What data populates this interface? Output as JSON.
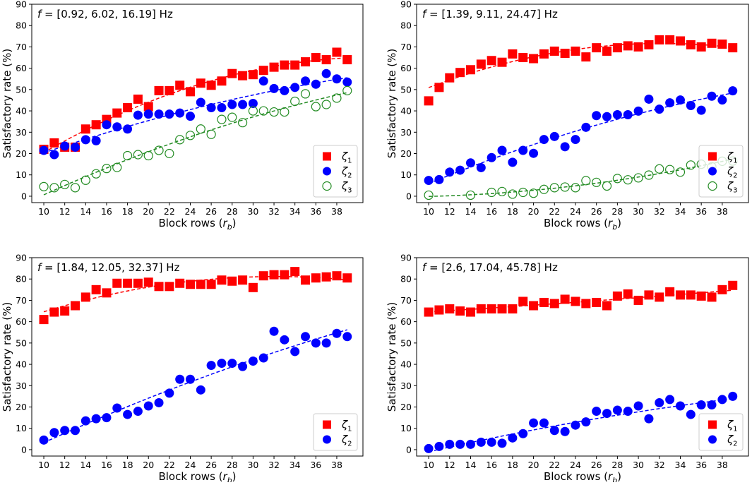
{
  "chart_data": [
    {
      "type": "scatter",
      "title": "f = [0.92, 6.02, 16.19] Hz",
      "xlabel": "Block rows (r_b)",
      "ylabel": "Satisfactory rate (%)",
      "xlim": [
        8.85,
        40.5
      ],
      "ylim": [
        -3,
        90
      ],
      "xticks": [
        10,
        12,
        14,
        16,
        18,
        20,
        22,
        24,
        26,
        28,
        30,
        32,
        34,
        36,
        38
      ],
      "yticks": [
        0,
        10,
        20,
        30,
        40,
        50,
        60,
        70,
        80,
        90
      ],
      "legend_position": "bottom-right",
      "x": [
        10,
        11,
        12,
        13,
        14,
        15,
        16,
        17,
        18,
        19,
        20,
        21,
        22,
        23,
        24,
        25,
        26,
        27,
        28,
        29,
        30,
        31,
        32,
        33,
        34,
        35,
        36,
        37,
        38,
        39
      ],
      "series": [
        {
          "name": "ζ1",
          "marker": "square",
          "color": "#ff0000",
          "fit": "dashed quadratic",
          "values": [
            22,
            25,
            23,
            23,
            31.5,
            33.5,
            36,
            39,
            41.5,
            45.5,
            42,
            49.5,
            49.5,
            52,
            49,
            53,
            52,
            54,
            57.5,
            56.5,
            57,
            59,
            60.5,
            61.5,
            61.5,
            63,
            65,
            64,
            67.5,
            64
          ]
        },
        {
          "name": "ζ2",
          "marker": "circle",
          "color": "#0000ff",
          "fit": "dashed quadratic",
          "values": [
            21.5,
            19.5,
            23.5,
            23,
            26.5,
            26,
            33.5,
            32.5,
            31.5,
            38,
            38.5,
            38.5,
            38.5,
            39,
            37.5,
            44,
            41.5,
            41.5,
            43,
            43,
            43.5,
            54,
            50.5,
            49.5,
            51,
            54,
            52.5,
            57.5,
            55,
            53.5
          ]
        },
        {
          "name": "ζ3",
          "marker": "open-circle",
          "color": "#228b22",
          "fit": "dashed quadratic",
          "values": [
            4.5,
            4,
            5.5,
            4,
            7.5,
            10.5,
            13,
            13.5,
            19,
            19.5,
            19,
            21.5,
            20,
            26.5,
            28.5,
            31.5,
            29,
            36,
            37,
            34.5,
            40,
            40,
            39.5,
            39.5,
            44.5,
            48,
            42,
            43,
            46,
            49.5
          ]
        }
      ]
    },
    {
      "type": "scatter",
      "title": "f = [1.39, 9.11, 24.47] Hz",
      "xlabel": "Block rows (r_b)",
      "ylabel": "Satisfactory rate (%)",
      "xlim": [
        8.85,
        40.5
      ],
      "ylim": [
        -3,
        90
      ],
      "xticks": [
        10,
        12,
        14,
        16,
        18,
        20,
        22,
        24,
        26,
        28,
        30,
        32,
        34,
        36,
        38
      ],
      "yticks": [
        0,
        10,
        20,
        30,
        40,
        50,
        60,
        70,
        80,
        90
      ],
      "legend_position": "bottom-right",
      "x": [
        10,
        11,
        12,
        13,
        14,
        15,
        16,
        17,
        18,
        19,
        20,
        21,
        22,
        23,
        24,
        25,
        26,
        27,
        28,
        29,
        30,
        31,
        32,
        33,
        34,
        35,
        36,
        37,
        38,
        39
      ],
      "series": [
        {
          "name": "ζ1",
          "marker": "square",
          "color": "#ff0000",
          "fit": "dashed quadratic",
          "values": [
            44.7,
            51,
            55.5,
            58,
            59.3,
            61.9,
            63.6,
            62.8,
            66.7,
            65,
            64.5,
            66.7,
            68,
            67,
            68,
            65.3,
            69.6,
            68,
            69.6,
            70.5,
            70,
            71,
            73.3,
            73.3,
            72.8,
            71,
            70,
            71.7,
            71.3,
            69.6
          ]
        },
        {
          "name": "ζ2",
          "marker": "circle",
          "color": "#0000ff",
          "fit": "dashed quadratic",
          "values": [
            7.4,
            7.8,
            11.3,
            12.2,
            15.6,
            13.4,
            18.1,
            21.5,
            15.9,
            21.5,
            20.1,
            26.6,
            28,
            23.2,
            26.6,
            32.3,
            37.8,
            37.3,
            38.2,
            38.2,
            39.9,
            45.5,
            40.8,
            43.8,
            45.1,
            42.5,
            40.3,
            46.9,
            45.1,
            49.4
          ]
        },
        {
          "name": "ζ3",
          "marker": "open-circle",
          "color": "#228b22",
          "fit": "dashed quadratic",
          "values": [
            0.5,
            null,
            null,
            null,
            0.5,
            null,
            1.8,
            2.2,
            1,
            1.8,
            1.4,
            3.2,
            4,
            4.3,
            4,
            7.3,
            6.5,
            4.8,
            8.3,
            7.7,
            8.6,
            9.9,
            12.8,
            12.5,
            11.3,
            14.6,
            15,
            13.8,
            16.4,
            16.5
          ]
        }
      ]
    },
    {
      "type": "scatter",
      "title": "f = [1.84, 12.05, 32.37] Hz",
      "xlabel": "Block rows (r_b)",
      "ylabel": "Satisfactory rate (%)",
      "xlim": [
        8.85,
        40.5
      ],
      "ylim": [
        -3,
        90
      ],
      "xticks": [
        10,
        12,
        14,
        16,
        18,
        20,
        22,
        24,
        26,
        28,
        30,
        32,
        34,
        36,
        38
      ],
      "yticks": [
        0,
        10,
        20,
        30,
        40,
        50,
        60,
        70,
        80,
        90
      ],
      "legend_position": "bottom-right",
      "x": [
        10,
        11,
        12,
        13,
        14,
        15,
        16,
        17,
        18,
        19,
        20,
        21,
        22,
        23,
        24,
        25,
        26,
        27,
        28,
        29,
        30,
        31,
        32,
        33,
        34,
        35,
        36,
        37,
        38,
        39
      ],
      "series": [
        {
          "name": "ζ1",
          "marker": "square",
          "color": "#ff0000",
          "fit": "dashed quadratic",
          "values": [
            61,
            64.5,
            65,
            67.5,
            71.5,
            75,
            73.5,
            78,
            78,
            78,
            78.5,
            76.5,
            76.5,
            78,
            77.5,
            77.5,
            77.5,
            79.5,
            79,
            79.5,
            76,
            81.5,
            82,
            82,
            83.5,
            79.5,
            80.5,
            81,
            81.5,
            80.5
          ]
        },
        {
          "name": "ζ2",
          "marker": "circle",
          "color": "#0000ff",
          "fit": "dashed quadratic",
          "values": [
            4.5,
            8,
            9,
            9,
            13.5,
            14.5,
            15,
            19.5,
            16.5,
            18,
            20.5,
            22,
            26.5,
            33,
            33,
            28,
            39.5,
            40.5,
            40.5,
            39,
            41.5,
            43,
            55.5,
            51.5,
            46,
            53,
            50,
            50,
            54.5,
            53
          ]
        }
      ]
    },
    {
      "type": "scatter",
      "title": "f = [2.6, 17.04, 45.78] Hz",
      "xlabel": "Block rows (r_b)",
      "ylabel": "Satisfactory rate (%)",
      "xlim": [
        8.85,
        40.5
      ],
      "ylim": [
        -3,
        90
      ],
      "xticks": [
        10,
        12,
        14,
        16,
        18,
        20,
        22,
        24,
        26,
        28,
        30,
        32,
        34,
        36,
        38
      ],
      "yticks": [
        0,
        10,
        20,
        30,
        40,
        50,
        60,
        70,
        80,
        90
      ],
      "legend_position": "bottom-right",
      "x": [
        10,
        11,
        12,
        13,
        14,
        15,
        16,
        17,
        18,
        19,
        20,
        21,
        22,
        23,
        24,
        25,
        26,
        27,
        28,
        29,
        30,
        31,
        32,
        33,
        34,
        35,
        36,
        37,
        38,
        39
      ],
      "series": [
        {
          "name": "ζ1",
          "marker": "square",
          "color": "#ff0000",
          "fit": "dashed quadratic",
          "values": [
            64.5,
            65.5,
            66,
            65,
            64.5,
            66,
            66,
            66,
            66,
            69.5,
            67.5,
            69,
            68.5,
            70.5,
            69.5,
            68.5,
            69,
            67.5,
            72,
            73,
            70,
            72.5,
            71.5,
            74,
            72.5,
            72.5,
            72,
            71.5,
            75,
            77
          ]
        },
        {
          "name": "ζ2",
          "marker": "circle",
          "color": "#0000ff",
          "fit": "dashed quadratic",
          "values": [
            0.5,
            1.5,
            2.5,
            2.5,
            2.5,
            3.5,
            3.5,
            3,
            5.5,
            7.5,
            12.5,
            12.5,
            9,
            8.5,
            11.5,
            13,
            18,
            17,
            18.5,
            18,
            20.5,
            14.5,
            22,
            23.5,
            20.5,
            16.5,
            21,
            21,
            23.5,
            25
          ]
        }
      ]
    }
  ]
}
